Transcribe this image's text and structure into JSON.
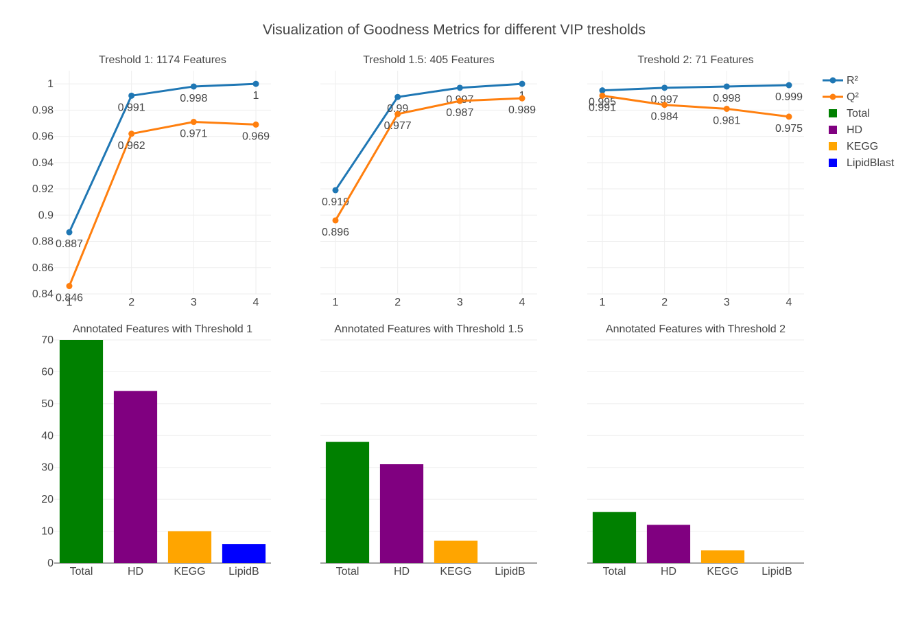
{
  "title": "Visualization of Goodness Metrics for different VIP tresholds",
  "legend": {
    "position": "top-right",
    "items": [
      {
        "label": "R²",
        "color": "#1f77b4",
        "kind": "line"
      },
      {
        "label": "Q²",
        "color": "#ff7f0e",
        "kind": "line"
      },
      {
        "label": "Total",
        "color": "#008000",
        "kind": "square"
      },
      {
        "label": "HD",
        "color": "#800080",
        "kind": "square"
      },
      {
        "label": "KEGG",
        "color": "#ffa500",
        "kind": "square"
      },
      {
        "label": "LipidBlast",
        "color": "#0000ff",
        "kind": "square"
      }
    ]
  },
  "chart_data": [
    {
      "type": "line",
      "title": "Treshold 1: 1174 Features",
      "x": [
        1,
        2,
        3,
        4
      ],
      "xticks": [
        "1",
        "2",
        "3",
        "4"
      ],
      "ylim": [
        0.84,
        1.01
      ],
      "yticks": [
        0.84,
        0.86,
        0.88,
        0.9,
        0.92,
        0.94,
        0.96,
        0.98,
        1
      ],
      "ytick_labels": [
        "0.84",
        "0.86",
        "0.88",
        "0.9",
        "0.92",
        "0.94",
        "0.96",
        "0.98",
        "1"
      ],
      "grid": true,
      "series": [
        {
          "name": "R²",
          "color": "#1f77b4",
          "values": [
            0.887,
            0.991,
            0.998,
            1
          ],
          "labels": [
            "0.887",
            "0.991",
            "0.998",
            "1"
          ]
        },
        {
          "name": "Q²",
          "color": "#ff7f0e",
          "values": [
            0.846,
            0.962,
            0.971,
            0.969
          ],
          "labels": [
            "0.846",
            "0.962",
            "0.971",
            "0.969"
          ]
        }
      ]
    },
    {
      "type": "line",
      "title": "Treshold 1.5: 405 Features",
      "x": [
        1,
        2,
        3,
        4
      ],
      "xticks": [
        "1",
        "2",
        "3",
        "4"
      ],
      "ylim": [
        0.84,
        1.01
      ],
      "yticks": [
        0.84,
        0.86,
        0.88,
        0.9,
        0.92,
        0.94,
        0.96,
        0.98,
        1
      ],
      "ytick_labels": [],
      "grid": true,
      "series": [
        {
          "name": "R²",
          "color": "#1f77b4",
          "values": [
            0.919,
            0.99,
            0.997,
            1
          ],
          "labels": [
            "0.919",
            "0.99",
            "0.997",
            "1"
          ]
        },
        {
          "name": "Q²",
          "color": "#ff7f0e",
          "values": [
            0.896,
            0.977,
            0.987,
            0.989
          ],
          "labels": [
            "0.896",
            "0.977",
            "0.987",
            "0.989"
          ]
        }
      ]
    },
    {
      "type": "line",
      "title": "Treshold 2: 71 Features",
      "x": [
        1,
        2,
        3,
        4
      ],
      "xticks": [
        "1",
        "2",
        "3",
        "4"
      ],
      "ylim": [
        0.84,
        1.01
      ],
      "yticks": [
        0.84,
        0.86,
        0.88,
        0.9,
        0.92,
        0.94,
        0.96,
        0.98,
        1
      ],
      "ytick_labels": [],
      "grid": true,
      "series": [
        {
          "name": "R²",
          "color": "#1f77b4",
          "values": [
            0.995,
            0.997,
            0.998,
            0.999
          ],
          "labels": [
            "0.995",
            "0.997",
            "0.998",
            "0.999"
          ]
        },
        {
          "name": "Q²",
          "color": "#ff7f0e",
          "values": [
            0.991,
            0.984,
            0.981,
            0.975
          ],
          "labels": [
            "0.991",
            "0.984",
            "0.981",
            "0.975"
          ]
        }
      ]
    },
    {
      "type": "bar",
      "title": "Annotated Features with Threshold 1",
      "categories": [
        "Total",
        "HD",
        "KEGG",
        "LipidB"
      ],
      "colors": [
        "#008000",
        "#800080",
        "#ffa500",
        "#0000ff"
      ],
      "values": [
        70,
        54,
        10,
        6
      ],
      "ylim": [
        0,
        70
      ],
      "yticks": [
        0,
        10,
        20,
        30,
        40,
        50,
        60,
        70
      ],
      "ytick_labels": [
        "0",
        "10",
        "20",
        "30",
        "40",
        "50",
        "60",
        "70"
      ],
      "grid": true
    },
    {
      "type": "bar",
      "title": "Annotated Features with Threshold 1.5",
      "categories": [
        "Total",
        "HD",
        "KEGG",
        "LipidB"
      ],
      "colors": [
        "#008000",
        "#800080",
        "#ffa500",
        "#0000ff"
      ],
      "values": [
        38,
        31,
        7,
        0
      ],
      "ylim": [
        0,
        70
      ],
      "yticks": [
        0,
        10,
        20,
        30,
        40,
        50,
        60,
        70
      ],
      "ytick_labels": [],
      "grid": true
    },
    {
      "type": "bar",
      "title": "Annotated Features with Threshold 2",
      "categories": [
        "Total",
        "HD",
        "KEGG",
        "LipidB"
      ],
      "colors": [
        "#008000",
        "#800080",
        "#ffa500",
        "#0000ff"
      ],
      "values": [
        16,
        12,
        4,
        0
      ],
      "ylim": [
        0,
        70
      ],
      "yticks": [
        0,
        10,
        20,
        30,
        40,
        50,
        60,
        70
      ],
      "ytick_labels": [],
      "grid": true
    }
  ]
}
